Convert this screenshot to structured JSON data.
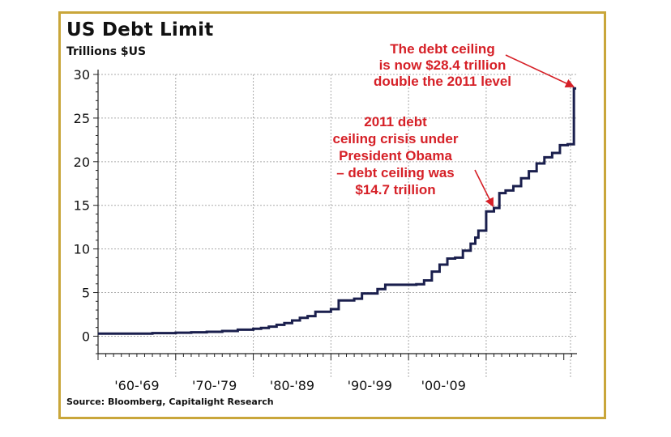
{
  "colors": {
    "frame": "#c9a63a",
    "line": "#1a1f4d",
    "annotation": "#d62027",
    "grid": "#aaaaaa"
  },
  "chart_data": {
    "type": "line",
    "title": "US Debt Limit",
    "ylabel": "Trillions $US",
    "source": "Source: Bloomberg, Capitalight Research",
    "ylim": [
      -2,
      30
    ],
    "xlim": [
      1960,
      2021.7
    ],
    "y_ticks": [
      0,
      5,
      10,
      15,
      20,
      25,
      30
    ],
    "x_labels": [
      {
        "text": "'60-'69",
        "x": 1965
      },
      {
        "text": "'70-'79",
        "x": 1975
      },
      {
        "text": "'80-'89",
        "x": 1985
      },
      {
        "text": "'90-'99",
        "x": 1995
      },
      {
        "text": "'00-'09",
        "x": 2004.5
      }
    ],
    "grid": true,
    "series": [
      {
        "x": [
          1960,
          1966,
          1967,
          1970,
          1972,
          1974,
          1976,
          1978,
          1980,
          1981,
          1982,
          1983,
          1984,
          1985,
          1986,
          1987,
          1988,
          1990,
          1991,
          1993,
          1994,
          1996,
          1997,
          2001,
          2002,
          2003,
          2004,
          2005,
          2006,
          2007,
          2008,
          2008.6,
          2009,
          2010,
          2011,
          2011.7,
          2012.5,
          2013.5,
          2014.5,
          2015.5,
          2016.5,
          2017.5,
          2018.5,
          2019.5,
          2020.5,
          2021.3,
          2021.6
        ],
        "y": [
          0.3,
          0.3,
          0.35,
          0.4,
          0.45,
          0.5,
          0.6,
          0.75,
          0.85,
          0.95,
          1.1,
          1.3,
          1.5,
          1.8,
          2.1,
          2.3,
          2.8,
          3.1,
          4.1,
          4.3,
          4.9,
          5.4,
          5.9,
          5.95,
          6.4,
          7.4,
          8.2,
          8.9,
          9.0,
          9.8,
          10.6,
          11.3,
          12.1,
          14.3,
          14.7,
          16.4,
          16.7,
          17.2,
          18.1,
          18.9,
          19.8,
          20.5,
          21.0,
          21.9,
          22.0,
          28.4,
          28.4
        ]
      }
    ],
    "annotations": [
      {
        "lines": [
          "The debt ceiling",
          "is now $28.4 trillion",
          "double the 2011 level"
        ],
        "point": [
          2021.6,
          28.4
        ]
      },
      {
        "lines": [
          "2011 debt",
          "ceiling crisis under",
          "President Obama",
          "– debt ceiling was",
          "$14.7 trillion"
        ],
        "point": [
          2011.2,
          14.7
        ]
      }
    ]
  }
}
